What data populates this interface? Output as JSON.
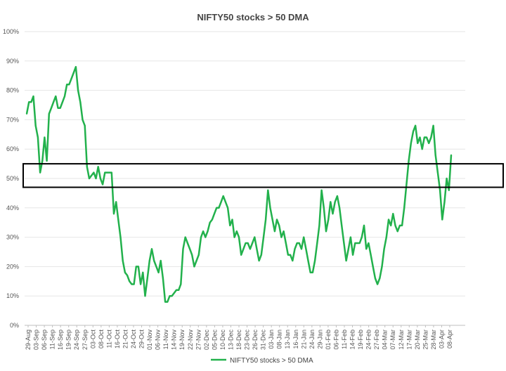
{
  "chart_data": {
    "type": "line",
    "title": "NIFTY50 stocks > 50 DMA",
    "xlabel": "",
    "ylabel": "",
    "ylim": [
      0,
      100
    ],
    "y_ticks": [
      "0%",
      "10%",
      "20%",
      "30%",
      "40%",
      "50%",
      "60%",
      "70%",
      "80%",
      "90%",
      "100%"
    ],
    "x_tick_labels": [
      "29-Aug",
      "03-Sep",
      "06-Sep",
      "11-Sep",
      "16-Sep",
      "19-Sep",
      "24-Sep",
      "27-Sep",
      "03-Oct",
      "08-Oct",
      "11-Oct",
      "16-Oct",
      "21-Oct",
      "24-Oct",
      "29-Oct",
      "01-Nov",
      "06-Nov",
      "11-Nov",
      "14-Nov",
      "19-Nov",
      "22-Nov",
      "27-Nov",
      "02-Dec",
      "05-Dec",
      "10-Dec",
      "13-Dec",
      "18-Dec",
      "23-Dec",
      "26-Dec",
      "31-Dec",
      "03-Jan",
      "08-Jan",
      "13-Jan",
      "16-Jan",
      "21-Jan",
      "24-Jan",
      "29-Jan",
      "01-Feb",
      "06-Feb",
      "11-Feb",
      "14-Feb",
      "19-Feb",
      "24-Feb",
      "27-Feb",
      "04-Mar",
      "07-Mar",
      "12-Mar",
      "17-Mar",
      "20-Mar",
      "25-Mar",
      "28-Mar",
      "03-Apr",
      "08-Apr"
    ],
    "grid": true,
    "legend_position": "bottom",
    "highlight_band": [
      47,
      55
    ],
    "series": [
      {
        "name": "NIFTY50 stocks > 50 DMA",
        "color": "#22b14c",
        "values": [
          72,
          76,
          76,
          78,
          68,
          64,
          52,
          56,
          64,
          56,
          72,
          74,
          76,
          78,
          74,
          74,
          76,
          78,
          82,
          82,
          84,
          86,
          88,
          80,
          76,
          70,
          68,
          54,
          50,
          51,
          52,
          50,
          54,
          50,
          48,
          52,
          52,
          52,
          52,
          38,
          42,
          36,
          30,
          22,
          18,
          17,
          15,
          14,
          14,
          20,
          20,
          14,
          18,
          10,
          16,
          22,
          26,
          22,
          20,
          18,
          22,
          16,
          8,
          8,
          10,
          10,
          11,
          12,
          12,
          14,
          26,
          30,
          28,
          26,
          24,
          20,
          22,
          24,
          30,
          32,
          30,
          32,
          35,
          36,
          38,
          40,
          40,
          42,
          44,
          42,
          40,
          34,
          36,
          30,
          32,
          30,
          24,
          26,
          28,
          28,
          26,
          28,
          30,
          26,
          22,
          24,
          30,
          36,
          46,
          40,
          36,
          32,
          36,
          34,
          30,
          32,
          28,
          24,
          24,
          22,
          26,
          28,
          28,
          26,
          30,
          26,
          22,
          18,
          18,
          22,
          28,
          34,
          46,
          40,
          32,
          36,
          42,
          38,
          42,
          44,
          40,
          34,
          28,
          22,
          26,
          30,
          24,
          28,
          28,
          28,
          30,
          34,
          26,
          28,
          24,
          20,
          16,
          14,
          16,
          20,
          26,
          30,
          36,
          34,
          38,
          34,
          32,
          34,
          34,
          40,
          48,
          56,
          62,
          66,
          68,
          62,
          64,
          60,
          64,
          64,
          62,
          64,
          68,
          58,
          52,
          46,
          36,
          42,
          50,
          46,
          58
        ]
      }
    ]
  }
}
